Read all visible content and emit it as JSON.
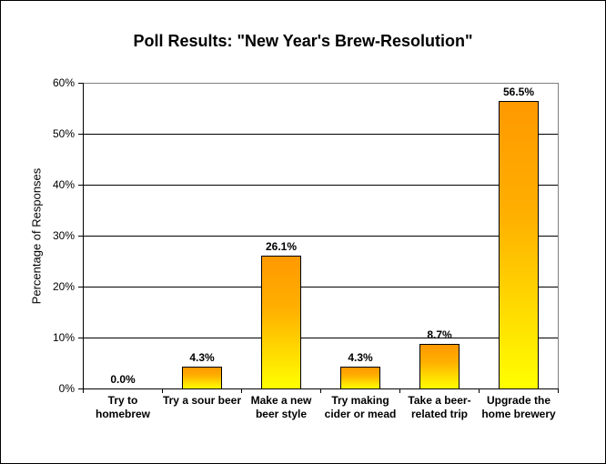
{
  "chart_data": {
    "type": "bar",
    "title": "Poll Results: \"New Year's Brew-Resolution\"",
    "xlabel": "",
    "ylabel": "Percentage of Responses",
    "ylim": [
      0,
      60
    ],
    "yticks": [
      "0%",
      "10%",
      "20%",
      "30%",
      "40%",
      "50%",
      "60%"
    ],
    "grid": true,
    "legend": null,
    "categories": [
      "Try to homebrew",
      "Try a sour beer",
      "Make a new beer style",
      "Try making cider or mead",
      "Take a beer-related trip",
      "Upgrade the home brewery"
    ],
    "category_lines": [
      [
        "Try to",
        "homebrew"
      ],
      [
        "Try a sour beer",
        ""
      ],
      [
        "Make a new",
        "beer style"
      ],
      [
        "Try making",
        "cider or mead"
      ],
      [
        "Take a beer-",
        "related trip"
      ],
      [
        "Upgrade the",
        "home brewery"
      ]
    ],
    "values": [
      0.0,
      4.3,
      26.1,
      4.3,
      8.7,
      56.5
    ],
    "data_labels": [
      "0.0%",
      "4.3%",
      "26.1%",
      "4.3%",
      "8.7%",
      "56.5%"
    ],
    "colors": {
      "bar_top": "#FF9900",
      "bar_bottom": "#FFFF00",
      "bar_border": "#000000"
    }
  }
}
